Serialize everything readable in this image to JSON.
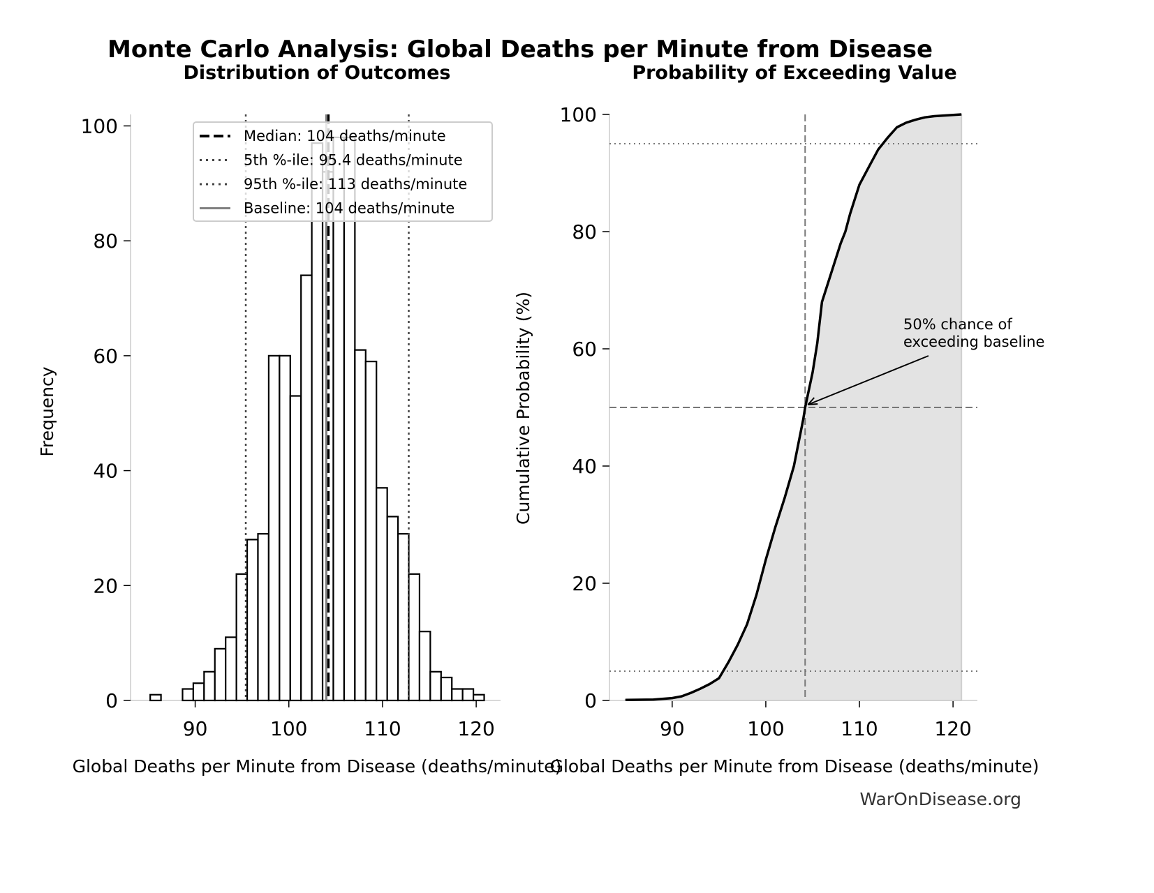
{
  "title": "Monte Carlo Analysis: Global Deaths per Minute from Disease",
  "footer": "WarOnDisease.org",
  "chart_data": [
    {
      "type": "bar",
      "subtitle": "Distribution of Outcomes",
      "xlabel": "Global Deaths per Minute from Disease (deaths/minute)",
      "ylabel": "Frequency",
      "xlim": [
        83.1,
        122.6
      ],
      "ylim": [
        0,
        102
      ],
      "xticks": [
        90,
        100,
        110,
        120
      ],
      "yticks": [
        0,
        20,
        40,
        60,
        80,
        100
      ],
      "bin_start": 85.2,
      "bin_width": 1.15,
      "values": [
        1,
        0,
        0,
        2,
        3,
        5,
        9,
        11,
        22,
        28,
        29,
        60,
        60,
        53,
        74,
        97,
        92,
        98,
        98,
        61,
        59,
        37,
        32,
        29,
        22,
        12,
        5,
        4,
        2,
        2,
        1
      ],
      "reference_lines": [
        {
          "label": "Median: 104 deaths/minute",
          "value": 104.2,
          "style": "dashed",
          "color": "#000000"
        },
        {
          "label": "5th %-ile: 95.4 deaths/minute",
          "value": 95.4,
          "style": "dotted",
          "color": "#444444"
        },
        {
          "label": "95th %-ile: 113 deaths/minute",
          "value": 112.8,
          "style": "dotted",
          "color": "#444444"
        },
        {
          "label": "Baseline: 104 deaths/minute",
          "value": 104.0,
          "style": "solid",
          "color": "#808080"
        }
      ],
      "legend": "top-right",
      "grid": false
    },
    {
      "type": "area",
      "subtitle": "Probability of Exceeding Value",
      "xlabel": "Global Deaths per Minute from Disease (deaths/minute)",
      "ylabel": "Cumulative Probability (%)",
      "xlim": [
        83.3,
        122.6
      ],
      "ylim": [
        0,
        100
      ],
      "xticks": [
        90,
        100,
        110,
        120
      ],
      "yticks": [
        0,
        20,
        40,
        60,
        80,
        100
      ],
      "x": [
        85,
        88,
        90,
        91,
        92,
        93,
        94,
        95,
        96,
        97,
        98,
        99,
        100,
        101,
        102,
        103,
        104,
        104.2,
        105,
        105.5,
        106,
        107,
        108,
        108.5,
        109,
        110,
        111,
        112,
        113,
        114,
        115,
        116,
        117,
        118,
        120.9
      ],
      "y": [
        0.1,
        0.15,
        0.4,
        0.7,
        1.3,
        2,
        2.8,
        3.8,
        6.5,
        9.5,
        13,
        18,
        24,
        29.5,
        34.5,
        40,
        48,
        50,
        56,
        61,
        68,
        73,
        78,
        80,
        83,
        88,
        91,
        94,
        96,
        97.8,
        98.6,
        99.1,
        99.5,
        99.7,
        100
      ],
      "hlines": [
        {
          "value": 5,
          "style": "dotted"
        },
        {
          "value": 50,
          "style": "dashed"
        },
        {
          "value": 95,
          "style": "dotted"
        }
      ],
      "vline": {
        "value": 104.2,
        "style": "dashed"
      },
      "annotation": {
        "text": [
          "50% chance of",
          "exceeding baseline"
        ],
        "point": [
          104.2,
          50
        ]
      },
      "fill_color": "#e3e3e3",
      "grid": false
    }
  ]
}
